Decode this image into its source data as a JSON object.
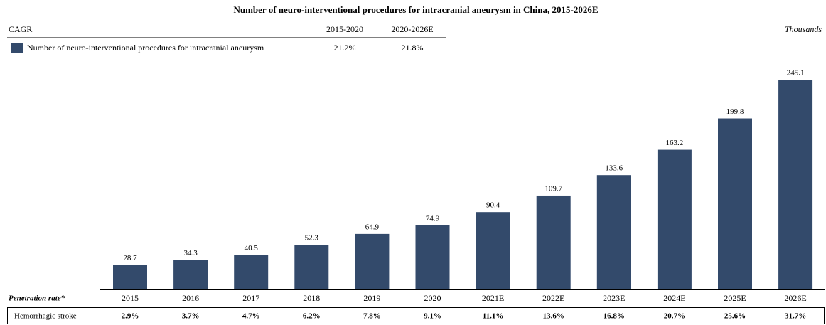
{
  "chart_data": {
    "type": "bar",
    "title": "Number of neuro-interventional procedures for intracranial aneurysm in China, 2015-2026E",
    "unit_label": "Thousands",
    "cagr": {
      "label": "CAGR",
      "periods": [
        "2015-2020",
        "2020-2026E"
      ],
      "values": [
        "21.2%",
        "21.8%"
      ]
    },
    "categories": [
      "2015",
      "2016",
      "2017",
      "2018",
      "2019",
      "2020",
      "2021E",
      "2022E",
      "2023E",
      "2024E",
      "2025E",
      "2026E"
    ],
    "series": [
      {
        "name": "Number of neuro-interventional procedures for intracranial aneurysm",
        "color": "#334a6b",
        "values": [
          28.7,
          34.3,
          40.5,
          52.3,
          64.9,
          74.9,
          90.4,
          109.7,
          133.6,
          163.2,
          199.8,
          245.1
        ]
      }
    ],
    "penetration": {
      "label": "Penetration rate*",
      "row_label": "Hemorrhagic stroke",
      "values": [
        "2.9%",
        "3.7%",
        "4.7%",
        "6.2%",
        "7.8%",
        "9.1%",
        "11.1%",
        "13.6%",
        "16.8%",
        "20.7%",
        "25.6%",
        "31.7%"
      ]
    }
  }
}
